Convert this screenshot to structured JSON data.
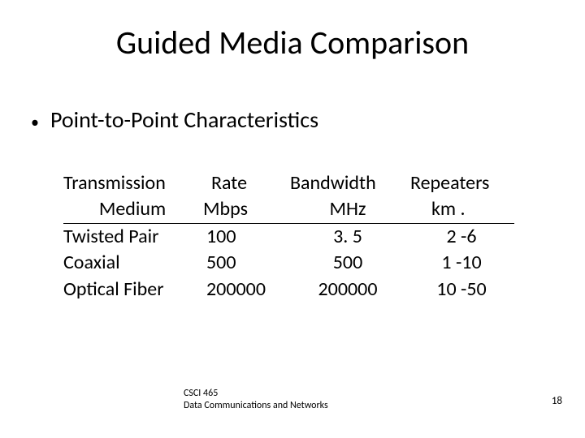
{
  "title": "Guided Media Comparison",
  "bullet": "Point-to-Point Characteristics",
  "table": {
    "type": "table",
    "header_top": [
      "Transmission",
      "Rate",
      "Bandwidth",
      "Repeaters"
    ],
    "header_bottom": [
      "Medium",
      "Mbps",
      "MHz",
      "km    ."
    ],
    "rows": [
      [
        "Twisted Pair",
        "100",
        "3. 5",
        "2 -6"
      ],
      [
        "Coaxial",
        "500",
        "500",
        "1 -10"
      ],
      [
        "Optical Fiber",
        "200000",
        "200000",
        "10 -50"
      ]
    ],
    "font_size_pt": 24,
    "underline_color": "#000000"
  },
  "footer_line1": "CSCI 465",
  "footer_line2": "Data Communications and Networks",
  "page_number": "18",
  "colors": {
    "background": "#ffffff",
    "text": "#000000"
  }
}
